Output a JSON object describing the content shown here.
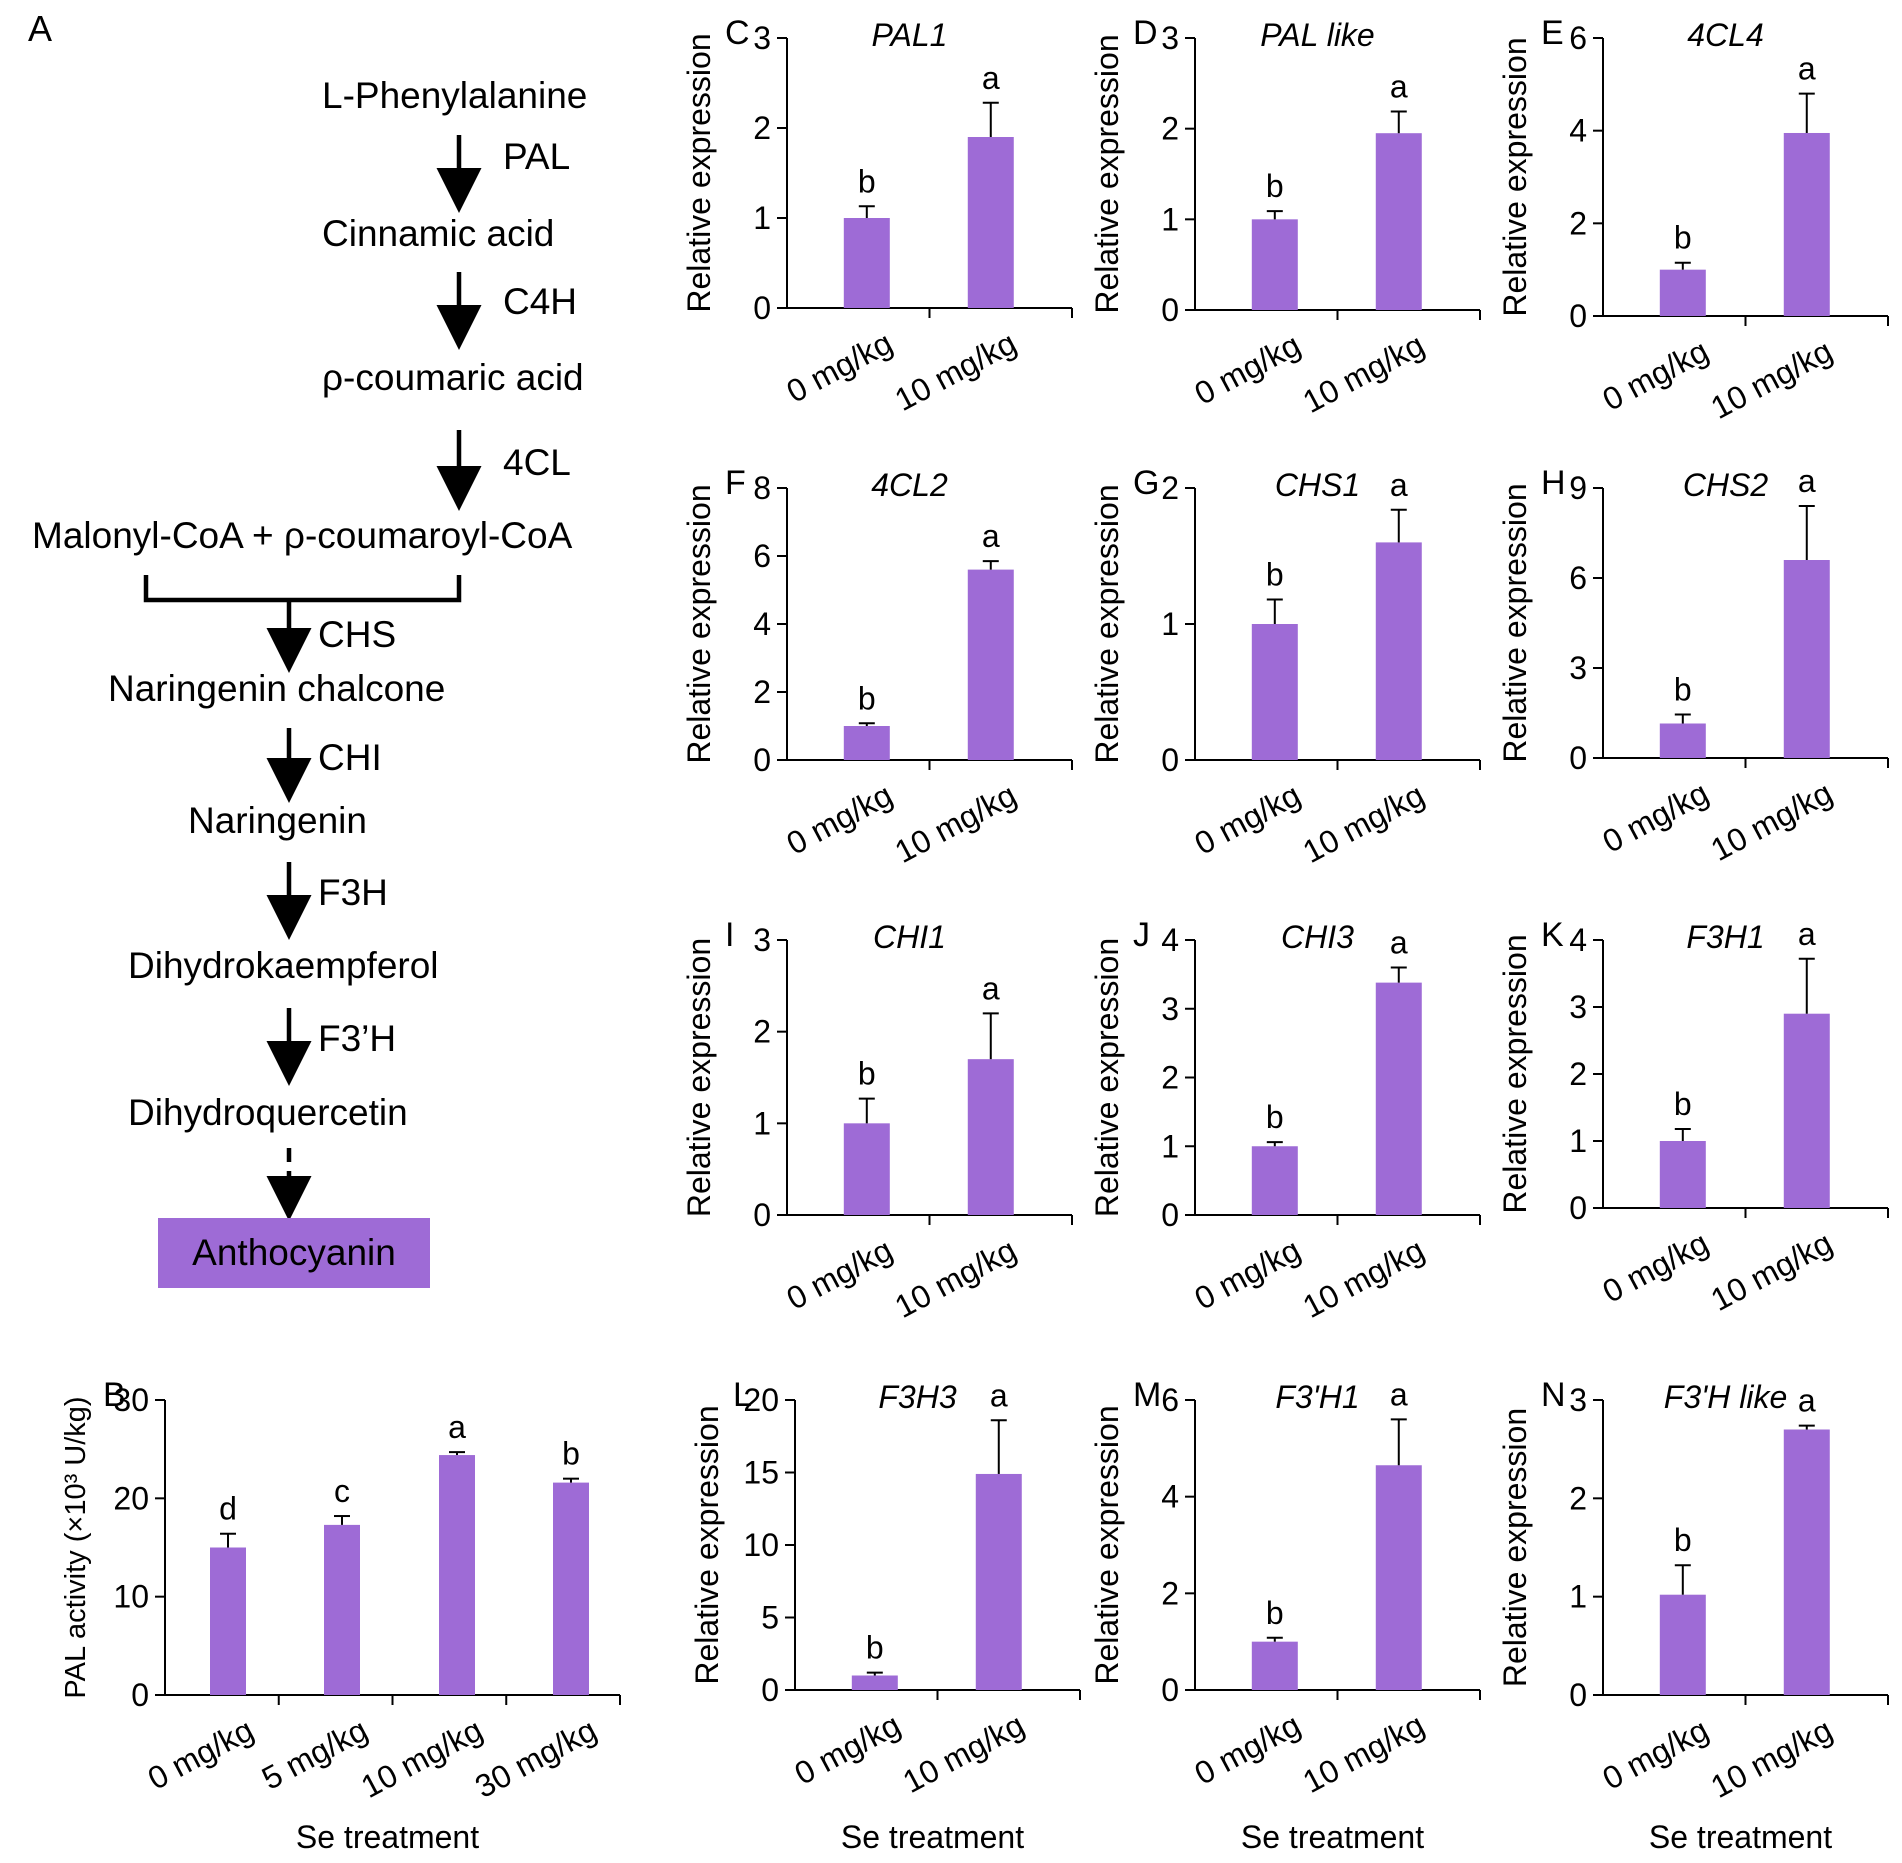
{
  "pathway": {
    "panel_label": "A",
    "compounds": [
      "L-Phenylalanine",
      "Cinnamic acid",
      "ρ-coumaric acid",
      "Malonyl-CoA + ρ-coumaroyl-CoA",
      "Naringenin chalcone",
      "Naringenin",
      "Dihydrokaempferol",
      "Dihydroquercetin"
    ],
    "enzymes": [
      "PAL",
      "C4H",
      "4CL",
      "CHS",
      "CHI",
      "F3H",
      "F3’H"
    ],
    "product": "Anthocyanin",
    "bar_color": "#9e6bd6"
  },
  "chart_data": [
    {
      "panel": "B",
      "type": "bar",
      "title": "",
      "categories": [
        "0 mg/kg",
        "5 mg/kg",
        "10 mg/kg",
        "30 mg/kg"
      ],
      "values": [
        15.0,
        17.3,
        24.4,
        21.6
      ],
      "errors": [
        1.4,
        0.9,
        0.3,
        0.4
      ],
      "letters": [
        "d",
        "c",
        "a",
        "b"
      ],
      "ylabel": "PAL activity (×10³ U/kg)",
      "xlabel": "Se treatment",
      "ylim": [
        0,
        30
      ],
      "yticks": [
        0,
        10,
        20,
        30
      ]
    },
    {
      "panel": "C",
      "type": "bar",
      "title": "PAL1",
      "categories": [
        "0 mg/kg",
        "10 mg/kg"
      ],
      "values": [
        1.0,
        1.9
      ],
      "errors": [
        0.13,
        0.38
      ],
      "letters": [
        "b",
        "a"
      ],
      "ylabel": "Relative expression",
      "xlabel": "",
      "ylim": [
        0,
        3
      ],
      "yticks": [
        0,
        1,
        2,
        3
      ]
    },
    {
      "panel": "D",
      "type": "bar",
      "title": "PAL like",
      "categories": [
        "0 mg/kg",
        "10 mg/kg"
      ],
      "values": [
        1.0,
        1.95
      ],
      "errors": [
        0.09,
        0.24
      ],
      "letters": [
        "b",
        "a"
      ],
      "ylabel": "Relative expression",
      "xlabel": "",
      "ylim": [
        0,
        3
      ],
      "yticks": [
        0,
        1,
        2,
        3
      ]
    },
    {
      "panel": "E",
      "type": "bar",
      "title": "4CL4",
      "categories": [
        "0 mg/kg",
        "10 mg/kg"
      ],
      "values": [
        1.0,
        3.95
      ],
      "errors": [
        0.15,
        0.85
      ],
      "letters": [
        "b",
        "a"
      ],
      "ylabel": "Relative expression",
      "xlabel": "",
      "ylim": [
        0,
        6
      ],
      "yticks": [
        0,
        2,
        4,
        6
      ]
    },
    {
      "panel": "F",
      "type": "bar",
      "title": "4CL2",
      "categories": [
        "0 mg/kg",
        "10 mg/kg"
      ],
      "values": [
        1.0,
        5.6
      ],
      "errors": [
        0.08,
        0.25
      ],
      "letters": [
        "b",
        "a"
      ],
      "ylabel": "Relative expression",
      "xlabel": "",
      "ylim": [
        0,
        8
      ],
      "yticks": [
        0,
        2,
        4,
        6,
        8
      ]
    },
    {
      "panel": "G",
      "type": "bar",
      "title": "CHS1",
      "categories": [
        "0 mg/kg",
        "10 mg/kg"
      ],
      "values": [
        1.0,
        1.6
      ],
      "errors": [
        0.18,
        0.24
      ],
      "letters": [
        "b",
        "a"
      ],
      "ylabel": "Relative expression",
      "xlabel": "",
      "ylim": [
        0,
        2
      ],
      "yticks": [
        0,
        1,
        2
      ]
    },
    {
      "panel": "H",
      "type": "bar",
      "title": "CHS2",
      "categories": [
        "0 mg/kg",
        "10 mg/kg"
      ],
      "values": [
        1.15,
        6.6
      ],
      "errors": [
        0.3,
        1.8
      ],
      "letters": [
        "b",
        "a"
      ],
      "ylabel": "Relative expression",
      "xlabel": "",
      "ylim": [
        0,
        9
      ],
      "yticks": [
        0,
        3,
        6,
        9
      ]
    },
    {
      "panel": "I",
      "type": "bar",
      "title": "CHI1",
      "categories": [
        "0 mg/kg",
        "10 mg/kg"
      ],
      "values": [
        1.0,
        1.7
      ],
      "errors": [
        0.27,
        0.5
      ],
      "letters": [
        "b",
        "a"
      ],
      "ylabel": "Relative expression",
      "xlabel": "",
      "ylim": [
        0,
        3
      ],
      "yticks": [
        0,
        1,
        2,
        3
      ]
    },
    {
      "panel": "J",
      "type": "bar",
      "title": "CHI3",
      "categories": [
        "0 mg/kg",
        "10 mg/kg"
      ],
      "values": [
        1.0,
        3.38
      ],
      "errors": [
        0.06,
        0.22
      ],
      "letters": [
        "b",
        "a"
      ],
      "ylabel": "Relative expression",
      "xlabel": "",
      "ylim": [
        0,
        4
      ],
      "yticks": [
        0,
        1,
        2,
        3,
        4
      ]
    },
    {
      "panel": "K",
      "type": "bar",
      "title": "F3H1",
      "categories": [
        "0 mg/kg",
        "10 mg/kg"
      ],
      "values": [
        1.0,
        2.9
      ],
      "errors": [
        0.18,
        0.82
      ],
      "letters": [
        "b",
        "a"
      ],
      "ylabel": "Relative expression",
      "xlabel": "",
      "ylim": [
        0,
        4
      ],
      "yticks": [
        0,
        1,
        2,
        3,
        4
      ]
    },
    {
      "panel": "L",
      "type": "bar",
      "title": "F3H3",
      "categories": [
        "0 mg/kg",
        "10 mg/kg"
      ],
      "values": [
        1.0,
        14.9
      ],
      "errors": [
        0.2,
        3.7
      ],
      "letters": [
        "b",
        "a"
      ],
      "ylabel": "Relative expression",
      "xlabel": "Se treatment",
      "ylim": [
        0,
        20
      ],
      "yticks": [
        0,
        5,
        10,
        15,
        20
      ]
    },
    {
      "panel": "M",
      "type": "bar",
      "title": "F3'H1",
      "categories": [
        "0 mg/kg",
        "10 mg/kg"
      ],
      "values": [
        1.0,
        4.65
      ],
      "errors": [
        0.08,
        0.95
      ],
      "letters": [
        "b",
        "a"
      ],
      "ylabel": "Relative expression",
      "xlabel": "Se treatment",
      "ylim": [
        0,
        6
      ],
      "yticks": [
        0,
        2,
        4,
        6
      ]
    },
    {
      "panel": "N",
      "type": "bar",
      "title": "F3'H like",
      "categories": [
        "0 mg/kg",
        "10 mg/kg"
      ],
      "values": [
        1.02,
        2.7
      ],
      "errors": [
        0.3,
        0.04
      ],
      "letters": [
        "b",
        "a"
      ],
      "ylabel": "Relative expression",
      "xlabel": "Se treatment",
      "ylim": [
        0,
        3
      ],
      "yticks": [
        0,
        1,
        2,
        3
      ]
    }
  ]
}
